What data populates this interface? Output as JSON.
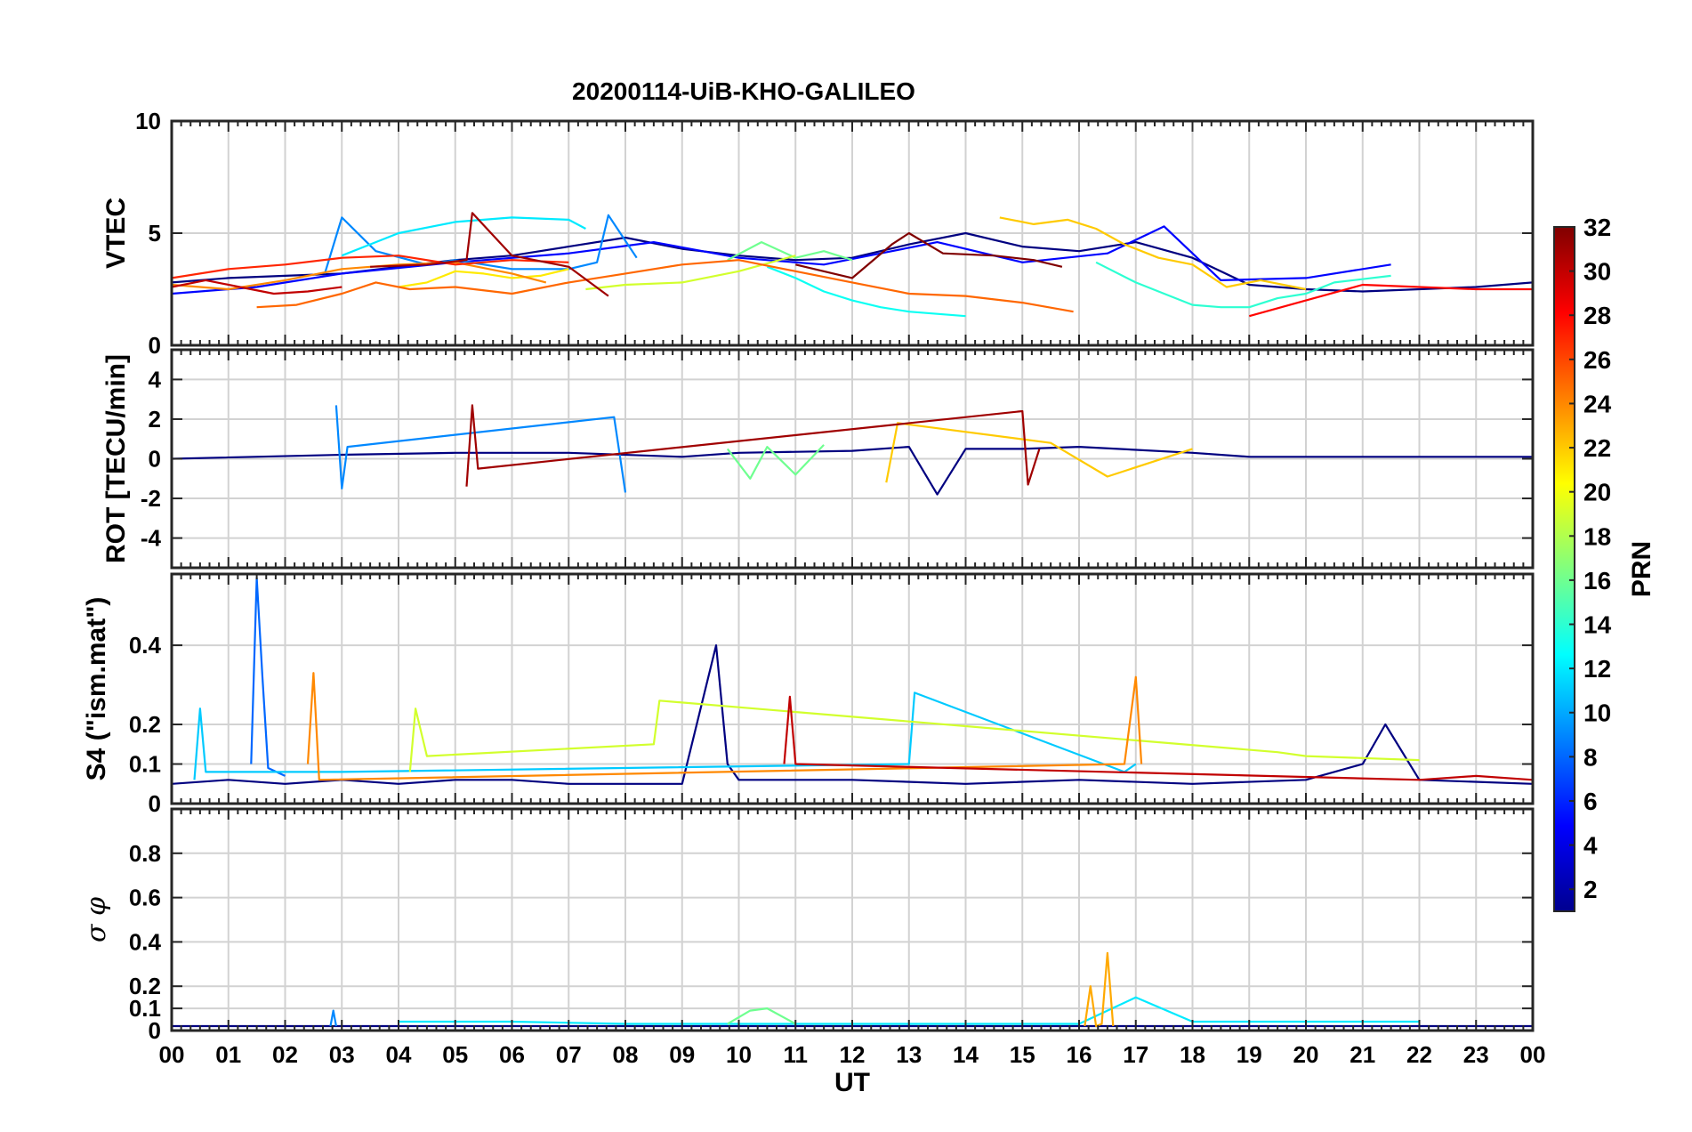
{
  "chart_data": {
    "type": "line",
    "title": "20200114-UiB-KHO-GALILEO",
    "xlabel": "UT",
    "x_tick_labels": [
      "00",
      "01",
      "02",
      "03",
      "04",
      "05",
      "06",
      "07",
      "08",
      "09",
      "10",
      "11",
      "12",
      "13",
      "14",
      "15",
      "16",
      "17",
      "18",
      "19",
      "20",
      "21",
      "22",
      "23",
      "00"
    ],
    "xlim": [
      0,
      24
    ],
    "grid": true,
    "colorbar": {
      "label": "PRN",
      "range": [
        1,
        32
      ],
      "tick_labels": [
        "2",
        "4",
        "6",
        "8",
        "10",
        "12",
        "14",
        "16",
        "18",
        "20",
        "22",
        "24",
        "26",
        "28",
        "30",
        "32"
      ],
      "colormap": "jet"
    },
    "panels": [
      {
        "ylabel": "VTEC",
        "ylim": [
          0,
          10
        ],
        "y_tick_labels": [
          "0",
          "5",
          "10"
        ],
        "series": [
          {
            "prn": 1,
            "x": [
              0,
              1,
              2,
              3,
              4,
              5,
              6,
              7,
              8,
              9,
              10,
              11,
              12,
              13,
              14,
              15,
              16,
              17,
              18,
              19,
              20,
              21,
              22,
              23,
              24
            ],
            "y": [
              2.8,
              3.0,
              3.1,
              3.2,
              3.5,
              3.8,
              4.0,
              4.4,
              4.8,
              4.3,
              4.0,
              3.8,
              3.9,
              4.5,
              5.0,
              4.4,
              4.2,
              4.6,
              3.9,
              2.7,
              2.5,
              2.4,
              2.5,
              2.6,
              2.8
            ]
          },
          {
            "prn": 5,
            "x": [
              0,
              1.5,
              3,
              5,
              7,
              8.5,
              10,
              11.5,
              12.5,
              13.5,
              15,
              16.5,
              17.5,
              18.5,
              20,
              21.5
            ],
            "y": [
              2.3,
              2.6,
              3.2,
              3.7,
              4.1,
              4.6,
              3.9,
              3.6,
              4.1,
              4.6,
              3.7,
              4.1,
              5.3,
              2.9,
              3.0,
              3.6
            ]
          },
          {
            "prn": 9,
            "x": [
              2.7,
              3.0,
              3.6,
              4.5,
              5.0,
              6.0,
              7.0,
              7.5,
              7.7,
              8.2
            ],
            "y": [
              3.2,
              5.7,
              4.2,
              3.6,
              3.8,
              3.4,
              3.4,
              3.7,
              5.8,
              3.9
            ]
          },
          {
            "prn": 12,
            "x": [
              3.0,
              3.5,
              4.0,
              5.0,
              6.0,
              7.0,
              7.3
            ],
            "y": [
              4.0,
              4.5,
              5.0,
              5.5,
              5.7,
              5.6,
              5.2
            ]
          },
          {
            "prn": 13,
            "x": [
              10.5,
              11.0,
              11.5,
              12.0,
              12.5,
              13.0,
              13.5,
              14.0
            ],
            "y": [
              3.5,
              3.0,
              2.4,
              2.0,
              1.7,
              1.5,
              1.4,
              1.3
            ]
          },
          {
            "prn": 14,
            "x": [
              16.3,
              17.0,
              17.5,
              18.0,
              18.5,
              19.0,
              19.5,
              20.0,
              20.5,
              21.5
            ],
            "y": [
              3.7,
              2.8,
              2.3,
              1.8,
              1.7,
              1.7,
              2.1,
              2.3,
              2.8,
              3.1
            ]
          },
          {
            "prn": 16,
            "x": [
              9.8,
              10.4,
              11.0,
              11.5,
              12.0
            ],
            "y": [
              3.8,
              4.6,
              3.9,
              4.2,
              3.8
            ]
          },
          {
            "prn": 19,
            "x": [
              7.3,
              8.0,
              9.0,
              10.0,
              11.0
            ],
            "y": [
              2.5,
              2.7,
              2.8,
              3.3,
              4.0
            ]
          },
          {
            "prn": 21,
            "x": [
              4.0,
              4.5,
              5.0,
              5.5,
              6.0,
              6.5,
              7.0
            ],
            "y": [
              2.6,
              2.8,
              3.3,
              3.2,
              3.0,
              3.1,
              3.4
            ]
          },
          {
            "prn": 22,
            "x": [
              14.6,
              15.2,
              15.8,
              16.3,
              16.8,
              17.4,
              18.0,
              18.6,
              19.2,
              20.0
            ],
            "y": [
              5.7,
              5.4,
              5.6,
              5.2,
              4.5,
              3.9,
              3.6,
              2.6,
              2.9,
              2.5
            ]
          },
          {
            "prn": 24,
            "x": [
              0,
              1,
              2,
              3,
              4,
              5,
              6,
              6.6
            ],
            "y": [
              2.7,
              2.5,
              2.9,
              3.4,
              3.6,
              3.7,
              3.2,
              2.8
            ]
          },
          {
            "prn": 25,
            "x": [
              1.5,
              2.2,
              3.0,
              3.6,
              4.2,
              5.0,
              6.0,
              7.0,
              8.0,
              9.0,
              10.0,
              11.0,
              12.0,
              13.0,
              14.0,
              15.0,
              15.9
            ],
            "y": [
              1.7,
              1.8,
              2.3,
              2.8,
              2.5,
              2.6,
              2.3,
              2.8,
              3.2,
              3.6,
              3.8,
              3.3,
              2.8,
              2.3,
              2.2,
              1.9,
              1.5
            ]
          },
          {
            "prn": 27,
            "x": [
              0,
              1,
              2,
              3,
              4,
              5,
              6,
              7
            ],
            "y": [
              3.0,
              3.4,
              3.6,
              3.9,
              4.0,
              3.6,
              3.8,
              3.7
            ]
          },
          {
            "prn": 30,
            "x": [
              0,
              0.6,
              1.2,
              1.8,
              2.4,
              3.0
            ],
            "y": [
              2.6,
              2.9,
              2.6,
              2.3,
              2.4,
              2.6
            ]
          },
          {
            "prn": 31,
            "x": [
              3.5,
              4.5,
              5.2,
              5.3,
              6.0,
              7.0,
              7.7
            ],
            "y": [
              3.5,
              3.6,
              3.8,
              5.9,
              4.0,
              3.5,
              2.2
            ]
          },
          {
            "prn": 32,
            "x": [
              11.0,
              12.0,
              12.7,
              13.0,
              13.6,
              14.5,
              15.2,
              15.7
            ],
            "y": [
              3.6,
              3.0,
              4.5,
              5.0,
              4.1,
              4.0,
              3.8,
              3.5
            ]
          },
          {
            "prn": 28,
            "x": [
              19.0,
              20.0,
              21.0,
              22.0,
              23.0,
              24.0
            ],
            "y": [
              1.3,
              2.0,
              2.7,
              2.6,
              2.5,
              2.5
            ]
          }
        ]
      },
      {
        "ylabel": "ROT [TECU/min]",
        "ylim": [
          -5.5,
          5.5
        ],
        "y_tick_labels": [
          "-4",
          "-2",
          "0",
          "2",
          "4"
        ],
        "series": [
          {
            "prn": 1,
            "x": [
              0,
              3,
              5,
              7,
              9,
              10,
              12,
              13,
              13.5,
              14,
              15,
              16,
              18,
              19,
              24
            ],
            "y": [
              0,
              0.2,
              0.3,
              0.3,
              0.1,
              0.3,
              0.4,
              0.6,
              -1.8,
              0.5,
              0.5,
              0.6,
              0.3,
              0.1,
              0.1
            ]
          },
          {
            "prn": 9,
            "x": [
              2.9,
              3.0,
              3.1,
              7.8,
              8.0
            ],
            "y": [
              2.7,
              -1.5,
              0.6,
              2.1,
              -1.7
            ]
          },
          {
            "prn": 16,
            "x": [
              9.8,
              10.2,
              10.5,
              11.0,
              11.5
            ],
            "y": [
              0.5,
              -1.0,
              0.6,
              -0.8,
              0.7
            ]
          },
          {
            "prn": 22,
            "x": [
              12.6,
              12.8,
              15.5,
              16.5,
              18.0
            ],
            "y": [
              -1.2,
              1.8,
              0.8,
              -0.9,
              0.5
            ]
          },
          {
            "prn": 31,
            "x": [
              5.2,
              5.3,
              5.4,
              15.0,
              15.1,
              15.3
            ],
            "y": [
              -1.4,
              2.7,
              -0.5,
              2.4,
              -1.3,
              0.5
            ]
          }
        ]
      },
      {
        "ylabel": "S4 (\"ism.mat\")",
        "ylim": [
          0,
          0.58
        ],
        "y_tick_labels": [
          "0",
          "0.1",
          "0.2",
          "0.4"
        ],
        "series": [
          {
            "prn": 1,
            "x": [
              0,
              1,
              2,
              3,
              4,
              5,
              6,
              7,
              8,
              9,
              9.6,
              9.8,
              10,
              12,
              14,
              16,
              18,
              20,
              21,
              21.4,
              22,
              24
            ],
            "y": [
              0.05,
              0.06,
              0.05,
              0.06,
              0.05,
              0.06,
              0.06,
              0.05,
              0.05,
              0.05,
              0.4,
              0.1,
              0.06,
              0.06,
              0.05,
              0.06,
              0.05,
              0.06,
              0.1,
              0.2,
              0.06,
              0.05
            ]
          },
          {
            "prn": 8,
            "x": [
              1.4,
              1.5,
              1.6,
              1.7,
              2.0
            ],
            "y": [
              0.1,
              0.57,
              0.32,
              0.09,
              0.07
            ]
          },
          {
            "prn": 11,
            "x": [
              0.4,
              0.5,
              0.6,
              3.0,
              13.0,
              13.1,
              16.8,
              17.0
            ],
            "y": [
              0.06,
              0.24,
              0.08,
              0.08,
              0.1,
              0.28,
              0.08,
              0.1
            ]
          },
          {
            "prn": 19,
            "x": [
              4.2,
              4.3,
              4.5,
              8.5,
              8.6,
              19.5,
              20.0,
              22.0
            ],
            "y": [
              0.08,
              0.24,
              0.12,
              0.15,
              0.26,
              0.13,
              0.12,
              0.11
            ]
          },
          {
            "prn": 24,
            "x": [
              2.4,
              2.5,
              2.6,
              16.8,
              17.0,
              17.1
            ],
            "y": [
              0.1,
              0.33,
              0.06,
              0.1,
              0.32,
              0.1
            ]
          },
          {
            "prn": 30,
            "x": [
              10.8,
              10.9,
              11.0,
              22.0,
              23.0,
              24.0
            ],
            "y": [
              0.1,
              0.27,
              0.1,
              0.06,
              0.07,
              0.06
            ]
          }
        ]
      },
      {
        "ylabel": "σ φ",
        "ylim": [
          0,
          1
        ],
        "y_tick_labels": [
          "0",
          "0.1",
          "0.2",
          "0.4",
          "0.6",
          "0.8"
        ],
        "series": [
          {
            "prn": 1,
            "x": [
              0,
              4,
              8,
              12,
              16,
              20,
              24
            ],
            "y": [
              0.02,
              0.02,
              0.02,
              0.02,
              0.02,
              0.02,
              0.02
            ]
          },
          {
            "prn": 12,
            "x": [
              4,
              6,
              8,
              9.5,
              12,
              16,
              17,
              18,
              20,
              22
            ],
            "y": [
              0.04,
              0.04,
              0.03,
              0.03,
              0.03,
              0.03,
              0.15,
              0.04,
              0.04,
              0.04
            ]
          },
          {
            "prn": 16,
            "x": [
              9.8,
              10.2,
              10.5,
              11.0
            ],
            "y": [
              0.03,
              0.09,
              0.1,
              0.03
            ]
          },
          {
            "prn": 23,
            "x": [
              16.1,
              16.2,
              16.3,
              16.4,
              16.5,
              16.6
            ],
            "y": [
              0.02,
              0.2,
              0.02,
              0.03,
              0.35,
              0.02
            ]
          },
          {
            "prn": 9,
            "x": [
              2.8,
              2.85,
              2.9
            ],
            "y": [
              0.02,
              0.09,
              0.02
            ]
          }
        ]
      }
    ]
  }
}
